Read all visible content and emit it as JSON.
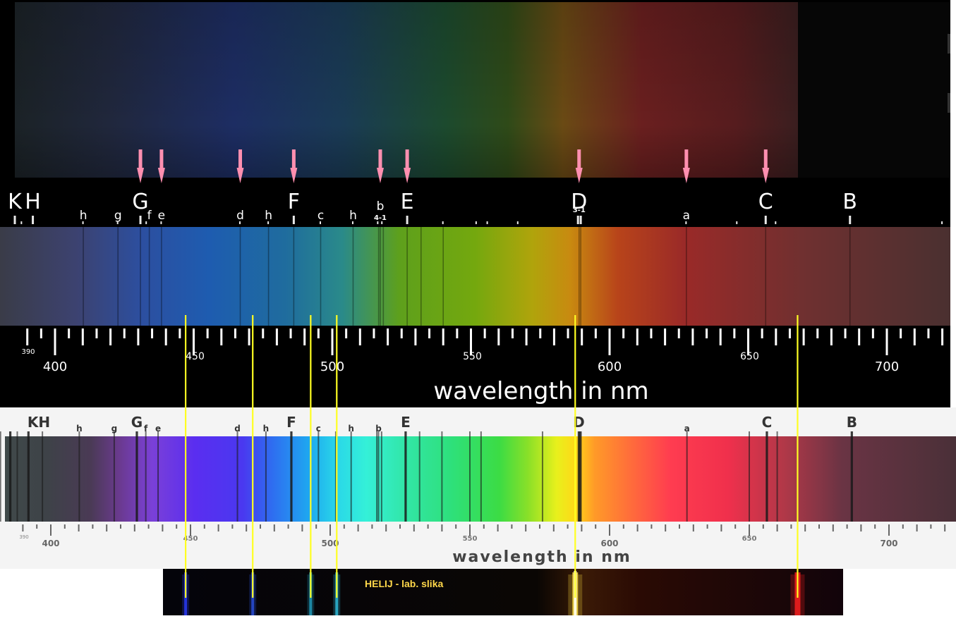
{
  "panels": {
    "top": {
      "fraunhofer_labels": [
        {
          "text": "K",
          "nm": 385.5,
          "size": "big"
        },
        {
          "text": "H",
          "nm": 392.0,
          "size": "big"
        },
        {
          "text": "h",
          "nm": 410.2,
          "size": "small"
        },
        {
          "text": "g",
          "nm": 422.7,
          "size": "small"
        },
        {
          "text": "G",
          "nm": 430.8,
          "size": "big"
        },
        {
          "text": "f",
          "nm": 434.0,
          "size": "small"
        },
        {
          "text": "e",
          "nm": 438.4,
          "size": "small"
        },
        {
          "text": "d",
          "nm": 466.8,
          "size": "small"
        },
        {
          "text": "h",
          "nm": 477.0,
          "size": "small"
        },
        {
          "text": "F",
          "nm": 486.1,
          "size": "big"
        },
        {
          "text": "c",
          "nm": 495.8,
          "size": "small"
        },
        {
          "text": "h",
          "nm": 507.5,
          "size": "small"
        },
        {
          "text": "b",
          "nm": 517.3,
          "size": "small"
        },
        {
          "text": "4-1",
          "nm": 517.3,
          "size": "tiny"
        },
        {
          "text": "E",
          "nm": 527.0,
          "size": "big"
        },
        {
          "text": "D",
          "nm": 589.0,
          "size": "big"
        },
        {
          "text": "3-1",
          "nm": 589.0,
          "size": "tiny"
        },
        {
          "text": "a",
          "nm": 627.7,
          "size": "small"
        },
        {
          "text": "C",
          "nm": 656.3,
          "size": "big"
        },
        {
          "text": "B",
          "nm": 686.7,
          "size": "big"
        }
      ],
      "arrow_nm": [
        430.8,
        438.4,
        466.8,
        486.1,
        517.3,
        527.0,
        589.0,
        627.7,
        656.3
      ],
      "scale": {
        "start_label": "390",
        "minor_labels": [
          "450",
          "550",
          "650"
        ],
        "major_labels": [
          "400",
          "500",
          "600",
          "700"
        ],
        "axis_title": "wavelength in nm"
      }
    },
    "bottom": {
      "fraunhofer_labels": [
        {
          "text": "KH",
          "nm": 389.0,
          "size": "big"
        },
        {
          "text": "h",
          "nm": 410.2,
          "size": "small"
        },
        {
          "text": "g",
          "nm": 422.7,
          "size": "small"
        },
        {
          "text": "G",
          "nm": 430.8,
          "size": "big"
        },
        {
          "text": "f",
          "nm": 434.0,
          "size": "small"
        },
        {
          "text": "e",
          "nm": 438.4,
          "size": "small"
        },
        {
          "text": "d",
          "nm": 466.8,
          "size": "small"
        },
        {
          "text": "h",
          "nm": 477.0,
          "size": "small"
        },
        {
          "text": "F",
          "nm": 486.1,
          "size": "big"
        },
        {
          "text": "c",
          "nm": 495.8,
          "size": "small"
        },
        {
          "text": "h",
          "nm": 507.5,
          "size": "small"
        },
        {
          "text": "b",
          "nm": 517.3,
          "size": "small"
        },
        {
          "text": "E",
          "nm": 527.0,
          "size": "big"
        },
        {
          "text": "D",
          "nm": 589.0,
          "size": "big"
        },
        {
          "text": "a",
          "nm": 627.7,
          "size": "small"
        },
        {
          "text": "C",
          "nm": 656.3,
          "size": "big"
        },
        {
          "text": "B",
          "nm": 686.7,
          "size": "big"
        }
      ],
      "absorption_nm": [
        382,
        385.5,
        388,
        392,
        397,
        410.2,
        422.7,
        430.8,
        434,
        438.4,
        466.8,
        477,
        486.1,
        495.8,
        502,
        507.5,
        516.7,
        517.3,
        518.4,
        527,
        532,
        540,
        550,
        554,
        576,
        589,
        589.6,
        627.7,
        650,
        656.3,
        660,
        686.7
      ],
      "scale": {
        "start_label": "390",
        "minor_labels": [
          "450",
          "550",
          "650"
        ],
        "major_labels": [
          "400",
          "500",
          "600",
          "700"
        ],
        "axis_title": "wavelength in nm"
      }
    },
    "helium": {
      "caption": "HELIJ - lab. slika",
      "emission_lines_nm": [
        447.1,
        471.3,
        492.2,
        501.6,
        587.6,
        667.8
      ]
    }
  },
  "colors": {
    "marker_line": "#ffff22",
    "arrow": "#ff8fb0",
    "caption": "#ffd84a"
  }
}
